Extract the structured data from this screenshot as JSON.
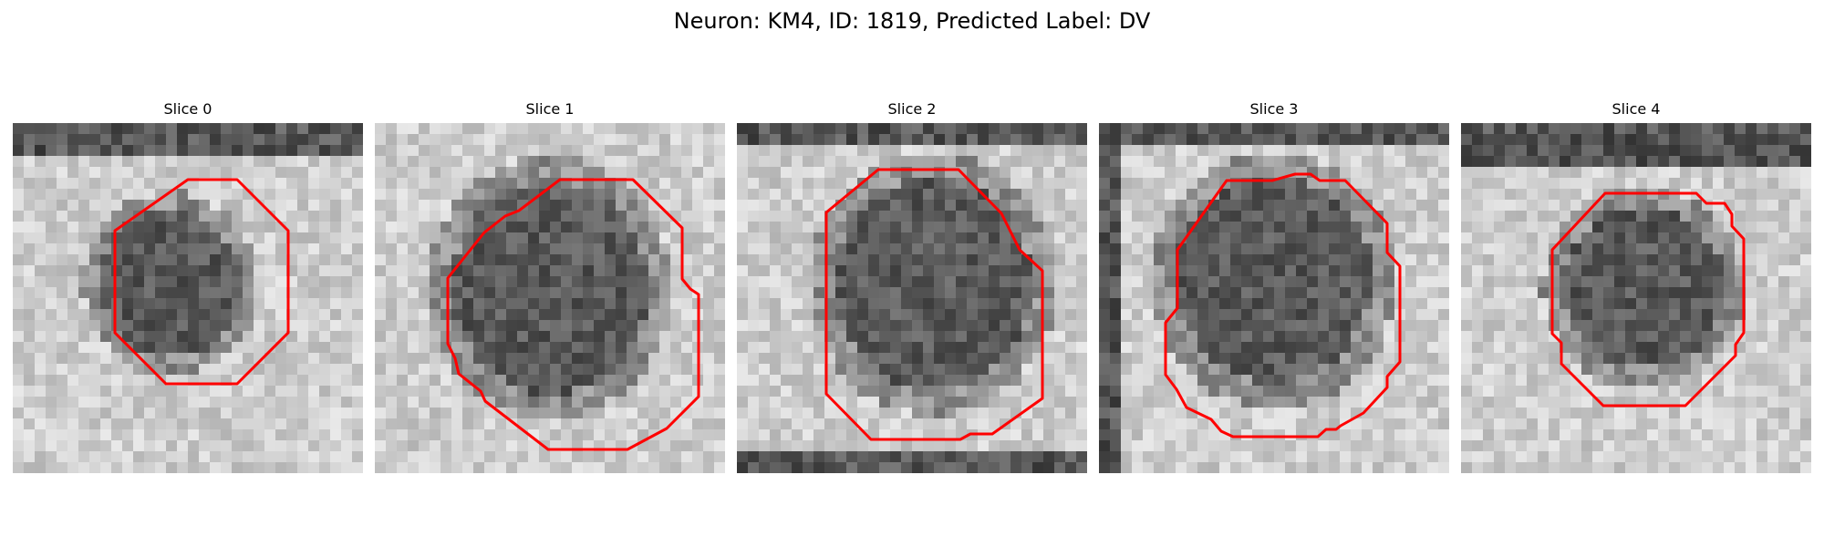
{
  "figure": {
    "title": "Neuron: KM4, ID: 1819, Predicted Label: DV",
    "overlay_color": "#ff0000"
  },
  "panels": [
    {
      "title": "Slice 0"
    },
    {
      "title": "Slice 1"
    },
    {
      "title": "Slice 2"
    },
    {
      "title": "Slice 3"
    },
    {
      "title": "Slice 4"
    }
  ]
}
